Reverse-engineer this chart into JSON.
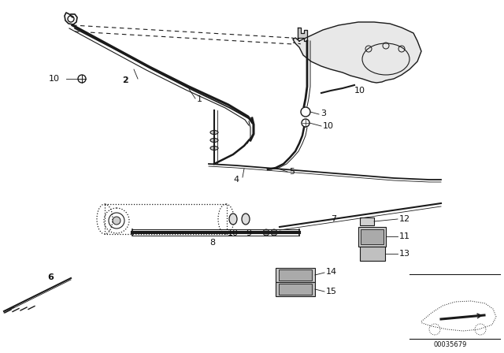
{
  "background_color": "#ffffff",
  "diagram_number": "00035679",
  "lc": "#1a1a1a",
  "tc": "#111111",
  "fs": 8
}
